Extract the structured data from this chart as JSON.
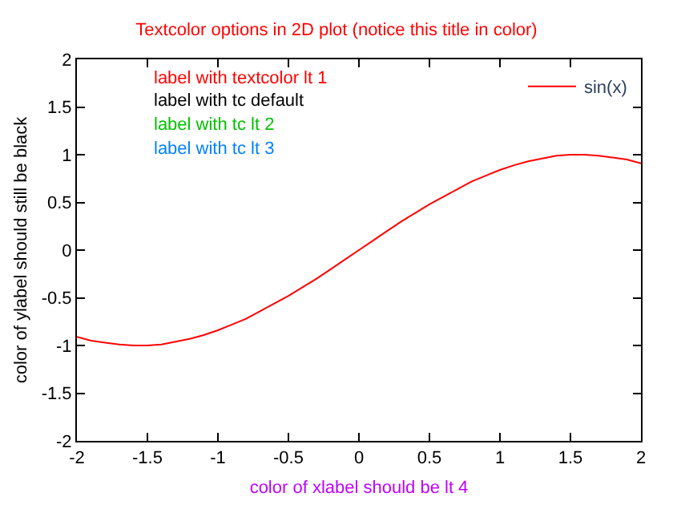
{
  "chart_data": {
    "type": "line",
    "title": "Textcolor options in 2D plot (notice this title in color)",
    "xlabel": "color of xlabel should be lt 4",
    "ylabel": "color of ylabel should still be black",
    "annotations": [
      "label with textcolor lt 1",
      "label with tc default",
      "label with tc lt 2",
      "label with tc lt 3"
    ],
    "x": [
      -2,
      -1.9,
      -1.8,
      -1.7,
      -1.6,
      -1.5,
      -1.4,
      -1.3,
      -1.2,
      -1.1,
      -1,
      -0.9,
      -0.8,
      -0.7,
      -0.6,
      -0.5,
      -0.4,
      -0.3,
      -0.2,
      -0.1,
      0,
      0.1,
      0.2,
      0.3,
      0.4,
      0.5,
      0.6,
      0.7,
      0.8,
      0.9,
      1,
      1.1,
      1.2,
      1.3,
      1.4,
      1.5,
      1.6,
      1.7,
      1.8,
      1.9,
      2
    ],
    "series": [
      {
        "name": "sin(x)",
        "color": "#ff0000",
        "values": [
          -0.91,
          -0.95,
          -0.97,
          -0.99,
          -1.0,
          -1.0,
          -0.99,
          -0.96,
          -0.93,
          -0.89,
          -0.84,
          -0.78,
          -0.72,
          -0.64,
          -0.56,
          -0.48,
          -0.39,
          -0.3,
          -0.2,
          -0.1,
          0,
          0.1,
          0.2,
          0.3,
          0.39,
          0.48,
          0.56,
          0.64,
          0.72,
          0.78,
          0.84,
          0.89,
          0.93,
          0.96,
          0.99,
          1.0,
          1.0,
          0.99,
          0.97,
          0.95,
          0.91
        ]
      }
    ],
    "xlim": [
      -2,
      2
    ],
    "xticks": [
      -2,
      -1.5,
      -1,
      -0.5,
      0,
      0.5,
      1,
      1.5,
      2
    ],
    "ylim": [
      -2,
      2
    ],
    "yticks": [
      -2,
      -1.5,
      -1,
      -0.5,
      0,
      0.5,
      1,
      1.5,
      2
    ],
    "grid": false,
    "legend": "top right",
    "marker": "none",
    "line_style": "solid"
  }
}
